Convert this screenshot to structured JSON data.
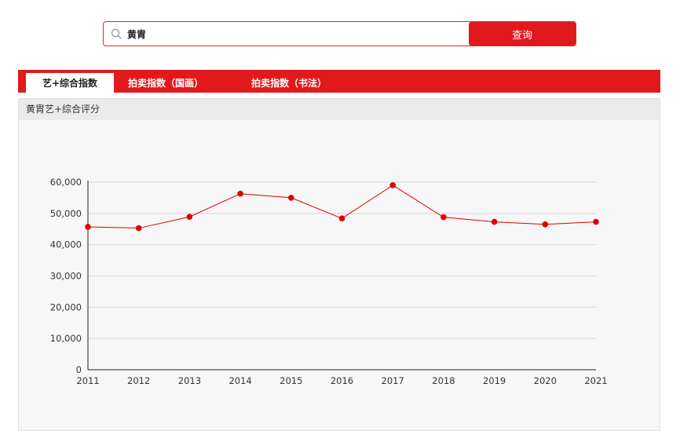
{
  "search": {
    "value": "黄胄",
    "button_label": "查询"
  },
  "tabs": [
    {
      "label": "艺+综合指数",
      "active": true
    },
    {
      "label": "拍卖指数（国画）",
      "active": false
    },
    {
      "label": "拍卖指数（书法）",
      "active": false
    }
  ],
  "panel": {
    "title": "黄胄艺+综合评分"
  },
  "colors": {
    "accent": "#e2191c",
    "series": "#e00000"
  },
  "chart_data": {
    "type": "line",
    "title": "",
    "xlabel": "",
    "ylabel": "",
    "x": [
      "2011",
      "2012",
      "2013",
      "2014",
      "2015",
      "2016",
      "2017",
      "2018",
      "2019",
      "2020",
      "2021"
    ],
    "series": [
      {
        "name": "",
        "values": [
          45700,
          45300,
          48900,
          56300,
          55000,
          48400,
          59000,
          48800,
          47300,
          46500,
          47300
        ]
      }
    ],
    "ylim": [
      0,
      60000
    ],
    "yticks": [
      "0",
      "10,000",
      "20,000",
      "30,000",
      "40,000",
      "50,000",
      "60,000"
    ],
    "grid": true,
    "legend": "none"
  }
}
